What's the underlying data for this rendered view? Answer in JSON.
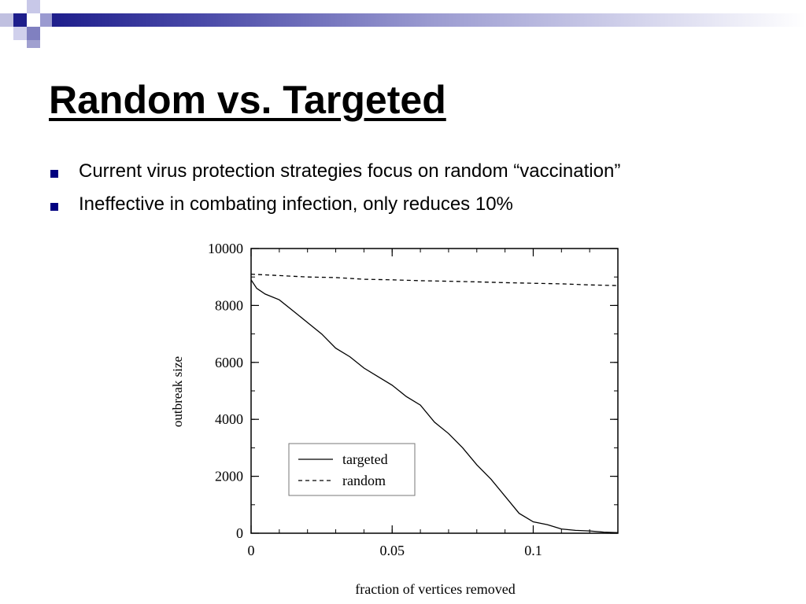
{
  "slide": {
    "title": "Random vs. Targeted",
    "bullets": [
      "Current virus protection strategies focus on random “vaccination”",
      "Ineffective in combating infection, only reduces 10%"
    ],
    "accent_color": "#000080"
  },
  "chart_data": {
    "type": "line",
    "xlabel": "fraction of vertices removed",
    "ylabel": "outbreak size",
    "xlim": [
      0,
      0.13
    ],
    "ylim": [
      0,
      10000
    ],
    "x_ticks": [
      {
        "value": 0,
        "label": "0"
      },
      {
        "value": 0.05,
        "label": "0.05"
      },
      {
        "value": 0.1,
        "label": "0.1"
      }
    ],
    "y_ticks": [
      {
        "value": 0,
        "label": "0"
      },
      {
        "value": 2000,
        "label": "2000"
      },
      {
        "value": 4000,
        "label": "4000"
      },
      {
        "value": 6000,
        "label": "6000"
      },
      {
        "value": 8000,
        "label": "8000"
      },
      {
        "value": 10000,
        "label": "10000"
      }
    ],
    "legend_position": "bottom-left",
    "series": [
      {
        "name": "targeted",
        "style": "solid",
        "points": [
          [
            0,
            8900
          ],
          [
            0.002,
            8600
          ],
          [
            0.005,
            8400
          ],
          [
            0.01,
            8200
          ],
          [
            0.015,
            7800
          ],
          [
            0.02,
            7400
          ],
          [
            0.025,
            7000
          ],
          [
            0.03,
            6500
          ],
          [
            0.035,
            6200
          ],
          [
            0.04,
            5800
          ],
          [
            0.045,
            5500
          ],
          [
            0.05,
            5200
          ],
          [
            0.055,
            4800
          ],
          [
            0.06,
            4500
          ],
          [
            0.065,
            3900
          ],
          [
            0.07,
            3500
          ],
          [
            0.075,
            3000
          ],
          [
            0.08,
            2400
          ],
          [
            0.085,
            1900
          ],
          [
            0.09,
            1300
          ],
          [
            0.095,
            700
          ],
          [
            0.1,
            400
          ],
          [
            0.105,
            300
          ],
          [
            0.11,
            150
          ],
          [
            0.115,
            100
          ],
          [
            0.12,
            80
          ],
          [
            0.125,
            40
          ],
          [
            0.13,
            20
          ]
        ]
      },
      {
        "name": "random",
        "style": "dashed",
        "points": [
          [
            0,
            9100
          ],
          [
            0.01,
            9050
          ],
          [
            0.02,
            9000
          ],
          [
            0.03,
            8980
          ],
          [
            0.04,
            8920
          ],
          [
            0.05,
            8900
          ],
          [
            0.06,
            8870
          ],
          [
            0.07,
            8850
          ],
          [
            0.08,
            8830
          ],
          [
            0.09,
            8800
          ],
          [
            0.1,
            8780
          ],
          [
            0.11,
            8760
          ],
          [
            0.12,
            8720
          ],
          [
            0.13,
            8700
          ]
        ]
      }
    ]
  }
}
